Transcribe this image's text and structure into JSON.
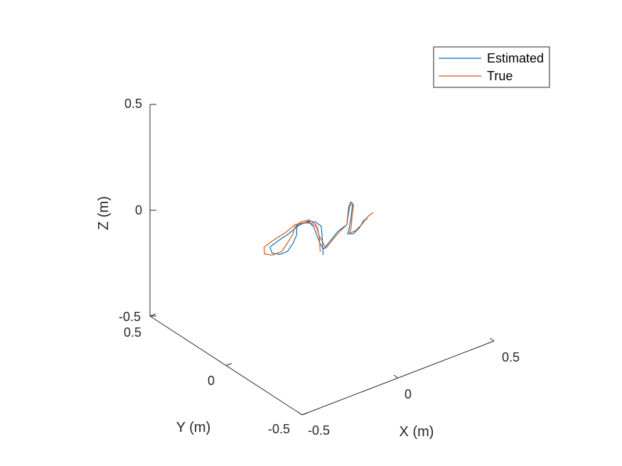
{
  "chart_data": {
    "type": "line",
    "projection": "3d",
    "grid": false,
    "legend_placement": "top-right",
    "xlabel": "X (m)",
    "ylabel": "Y (m)",
    "zlabel": "Z (m)",
    "xlim": [
      -0.5,
      0.5
    ],
    "ylim": [
      -0.5,
      0.5
    ],
    "zlim": [
      -0.5,
      0.5
    ],
    "xticks": [
      -0.5,
      0,
      0.5
    ],
    "yticks": [
      -0.5,
      0,
      0.5
    ],
    "zticks": [
      -0.5,
      0,
      0.5
    ],
    "xtick_labels": [
      "-0.5",
      "0",
      "0.5"
    ],
    "ytick_labels": [
      "-0.5",
      "0",
      "0.5"
    ],
    "ztick_labels": [
      "-0.5",
      "0",
      "0.5"
    ],
    "colors": {
      "estimated": "#0072BD",
      "true": "#D95319",
      "axis": "#262626"
    },
    "series": [
      {
        "name": "Estimated",
        "color": "#0072BD",
        "points": [
          [
            -0.01,
            -0.02,
            -0.14
          ],
          [
            -0.015,
            -0.02,
            -0.05
          ],
          [
            -0.02,
            -0.02,
            0.0
          ],
          [
            -0.05,
            -0.02,
            0.03
          ],
          [
            -0.08,
            -0.01,
            0.04
          ],
          [
            -0.12,
            0.0,
            0.03
          ],
          [
            -0.17,
            0.0,
            0.01
          ],
          [
            -0.21,
            0.02,
            -0.02
          ],
          [
            -0.24,
            0.04,
            -0.05
          ],
          [
            -0.22,
            0.05,
            -0.09
          ],
          [
            -0.18,
            0.05,
            -0.11
          ],
          [
            -0.14,
            0.05,
            -0.11
          ],
          [
            -0.11,
            0.05,
            -0.08
          ],
          [
            -0.1,
            0.04,
            -0.04
          ],
          [
            -0.1,
            0.04,
            0.0
          ],
          [
            -0.09,
            0.03,
            0.01
          ],
          [
            -0.06,
            0.01,
            0.02
          ],
          [
            -0.05,
            -0.01,
            0.0
          ],
          [
            -0.05,
            -0.03,
            -0.03
          ],
          [
            -0.04,
            -0.04,
            -0.07
          ],
          [
            -0.03,
            -0.05,
            -0.09
          ],
          [
            0.02,
            -0.08,
            -0.01
          ],
          [
            0.05,
            -0.1,
            0.02
          ],
          [
            0.06,
            -0.1,
            0.1
          ],
          [
            0.07,
            -0.1,
            0.12
          ],
          [
            0.08,
            -0.1,
            0.11
          ],
          [
            0.08,
            -0.09,
            0.04
          ],
          [
            0.07,
            -0.09,
            -0.01
          ],
          [
            0.07,
            -0.08,
            -0.04
          ],
          [
            0.1,
            -0.08,
            -0.05
          ],
          [
            0.14,
            -0.07,
            -0.04
          ],
          [
            0.17,
            -0.06,
            -0.02
          ],
          [
            0.19,
            -0.06,
            -0.02
          ]
        ]
      },
      {
        "name": "True",
        "color": "#D95319",
        "points": [
          [
            -0.025,
            -0.02,
            -0.12
          ],
          [
            -0.03,
            -0.02,
            -0.05
          ],
          [
            -0.04,
            -0.02,
            0.0
          ],
          [
            -0.07,
            -0.02,
            0.03
          ],
          [
            -0.1,
            -0.01,
            0.04
          ],
          [
            -0.14,
            0.0,
            0.04
          ],
          [
            -0.19,
            0.0,
            0.02
          ],
          [
            -0.24,
            0.02,
            -0.01
          ],
          [
            -0.27,
            0.04,
            -0.04
          ],
          [
            -0.26,
            0.05,
            -0.08
          ],
          [
            -0.22,
            0.05,
            -0.1
          ],
          [
            -0.17,
            0.05,
            -0.1
          ],
          [
            -0.14,
            0.05,
            -0.07
          ],
          [
            -0.12,
            0.04,
            -0.03
          ],
          [
            -0.11,
            0.04,
            0.0
          ],
          [
            -0.09,
            0.03,
            0.02
          ],
          [
            -0.06,
            0.01,
            0.03
          ],
          [
            -0.04,
            -0.01,
            0.01
          ],
          [
            -0.04,
            -0.03,
            -0.03
          ],
          [
            -0.03,
            -0.04,
            -0.06
          ],
          [
            -0.02,
            -0.05,
            -0.09
          ],
          [
            0.02,
            -0.08,
            -0.02
          ],
          [
            0.05,
            -0.1,
            0.02
          ],
          [
            0.065,
            -0.1,
            0.1
          ],
          [
            0.075,
            -0.1,
            0.11
          ],
          [
            0.085,
            -0.1,
            0.1
          ],
          [
            0.085,
            -0.09,
            0.04
          ],
          [
            0.08,
            -0.09,
            -0.01
          ],
          [
            0.08,
            -0.08,
            -0.04
          ],
          [
            0.11,
            -0.08,
            -0.04
          ],
          [
            0.15,
            -0.07,
            -0.03
          ],
          [
            0.19,
            -0.06,
            -0.01
          ],
          [
            0.22,
            -0.06,
            0.0
          ]
        ]
      }
    ]
  }
}
